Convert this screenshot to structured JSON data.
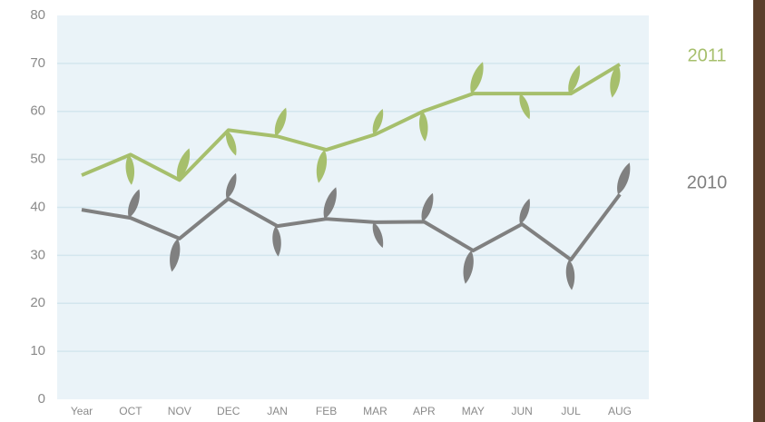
{
  "chart_data": {
    "type": "line",
    "categories": [
      "Year",
      "OCT",
      "NOV",
      "DEC",
      "JAN",
      "FEB",
      "MAR",
      "APR",
      "MAY",
      "JUN",
      "JUL",
      "AUG"
    ],
    "series": [
      {
        "name": "2011",
        "color": "#a6bf6c",
        "values": [
          46.7,
          51,
          45.7,
          56.1,
          54.8,
          52,
          55.2,
          60.1,
          63.7,
          63.7,
          63.7,
          69.8
        ]
      },
      {
        "name": "2010",
        "color": "#808080",
        "values": [
          39.5,
          37.8,
          33.5,
          41.8,
          36.1,
          37.6,
          36.9,
          37,
          31,
          36.5,
          29.1,
          42.7
        ]
      }
    ],
    "ylim": [
      0,
      80
    ],
    "yticks": [
      0,
      10,
      20,
      30,
      40,
      50,
      60,
      70,
      80
    ],
    "grid": true
  }
}
